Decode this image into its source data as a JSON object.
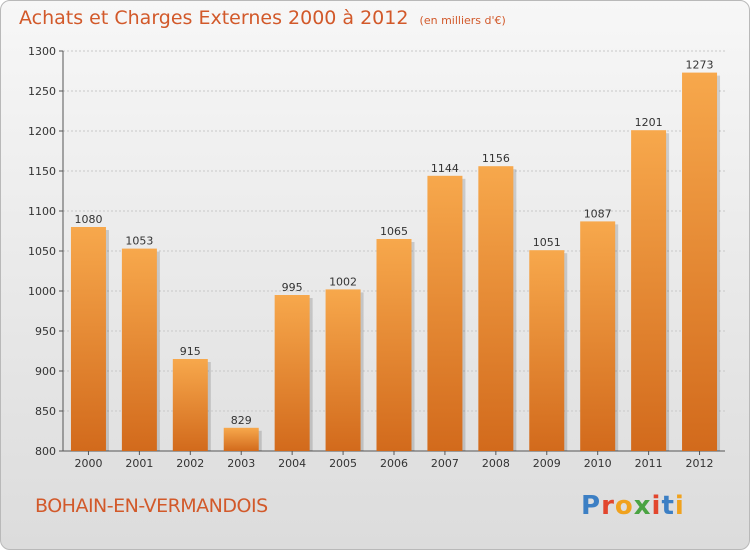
{
  "header": {
    "title": "Achats et Charges Externes 2000 à 2012",
    "subtitle": "(en milliers d'€)"
  },
  "footer": {
    "city": "BOHAIN-EN-VERMANDOIS",
    "logo": "Proxiti"
  },
  "colors": {
    "accent": "#d2592a",
    "bar_top": "#f7a84c",
    "bar_bottom": "#d26a1c",
    "logo_letters": [
      "#3c7fc4",
      "#e2462d",
      "#f0a21e",
      "#4aa342",
      "#e2462d",
      "#3c7fc4",
      "#f0a21e"
    ]
  },
  "chart_data": {
    "type": "bar",
    "categories": [
      "2000",
      "2001",
      "2002",
      "2003",
      "2004",
      "2005",
      "2006",
      "2007",
      "2008",
      "2009",
      "2010",
      "2011",
      "2012"
    ],
    "values": [
      1080,
      1053,
      915,
      829,
      995,
      1002,
      1065,
      1144,
      1156,
      1051,
      1087,
      1201,
      1273
    ],
    "yticks": [
      800,
      850,
      900,
      950,
      1000,
      1050,
      1100,
      1150,
      1200,
      1250,
      1300
    ],
    "ylim": [
      800,
      1300
    ],
    "grid": true,
    "data_labels": true
  }
}
